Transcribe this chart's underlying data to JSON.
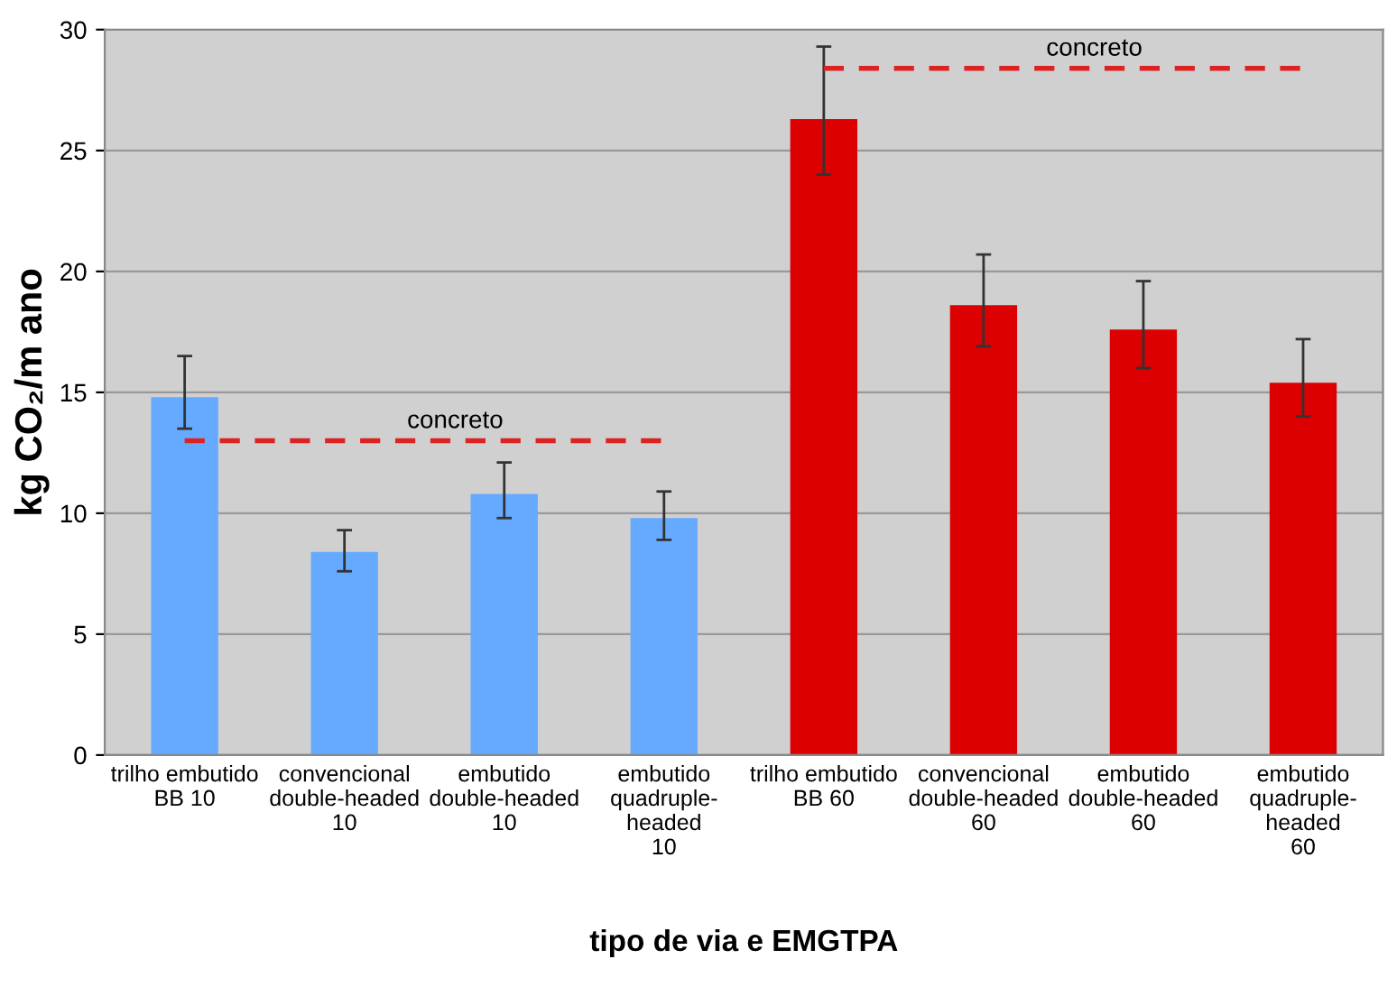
{
  "chart_data": {
    "type": "bar",
    "xlabel": "tipo de via e EMGTPA",
    "ylabel": "kg CO₂/m ano",
    "categories": [
      "trilho embutido\nBB 10",
      "convencional\ndouble-headed\n10",
      "embutido\ndouble-headed\n10",
      "embutido\nquadruple-\nheaded\n10",
      "trilho embutido\nBB 60",
      "convencional\ndouble-headed\n60",
      "embutido\ndouble-headed\n60",
      "embutido\nquadruple-\nheaded\n60"
    ],
    "series": [
      {
        "colors": [
          "#66aaff",
          "#66aaff",
          "#66aaff",
          "#66aaff",
          "#dd0000",
          "#dd0000",
          "#dd0000",
          "#dd0000"
        ],
        "values": [
          14.8,
          8.4,
          10.8,
          9.8,
          26.3,
          18.6,
          17.6,
          15.4
        ],
        "errors": [
          [
            13.5,
            16.5
          ],
          [
            7.6,
            9.3
          ],
          [
            9.8,
            12.1
          ],
          [
            8.9,
            10.9
          ],
          [
            24.0,
            29.3
          ],
          [
            16.9,
            20.7
          ],
          [
            16.0,
            19.6
          ],
          [
            14.0,
            17.2
          ]
        ]
      },
      {
        "type": "line",
        "color": "#dd2222",
        "line_style": "dashed",
        "values": [
          13,
          13,
          13,
          13,
          null,
          null,
          null,
          null
        ]
      },
      {
        "type": "line",
        "color": "#dd2222",
        "line_style": "dashed",
        "values": [
          null,
          null,
          null,
          null,
          28.4,
          28.4,
          28.4,
          28.4
        ]
      }
    ],
    "annotations": [
      {
        "text": "concreto",
        "x": "convencional\ndouble-headed\n10",
        "y": 13
      },
      {
        "text": "concreto",
        "x": "convencional\ndouble-headed\n60",
        "y": 28.4
      }
    ],
    "ylim": [
      0,
      30
    ],
    "yticks": [
      0,
      5,
      10,
      15,
      20,
      25,
      30
    ],
    "grid": "y",
    "legend": false
  }
}
